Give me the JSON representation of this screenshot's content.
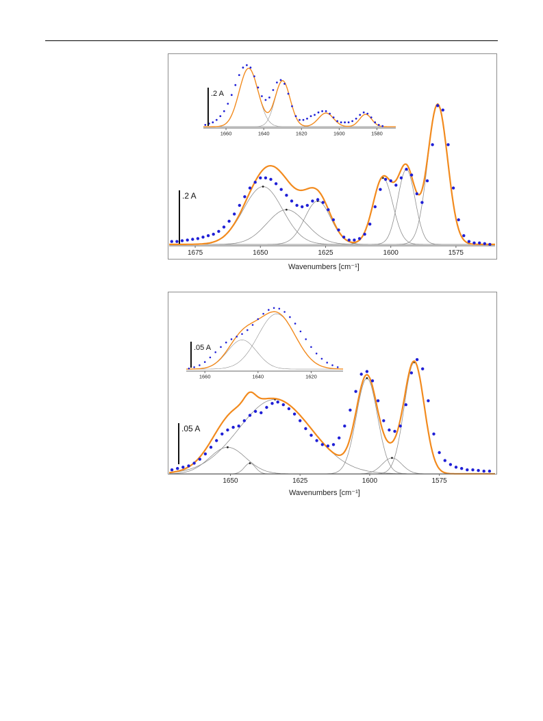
{
  "chart_data": [
    {
      "type": "line",
      "panel": "top",
      "xlabel": "Wavenumbers [cm⁻¹]",
      "xlim": [
        1685,
        1560
      ],
      "x_reversed": true,
      "xticks": [
        1675,
        1650,
        1625,
        1600,
        1575
      ],
      "ylim": [
        0,
        1.0
      ],
      "scale_bar_label": ".2 A",
      "scale_bar_value": 0.2,
      "colors": {
        "fit": "#f28a1d",
        "data": "#1f1fd6",
        "components": "#8c8c8c",
        "frame": "#8c8c8c"
      },
      "components": [
        {
          "center": 1649,
          "height": 0.4,
          "width": 7.5
        },
        {
          "center": 1640,
          "height": 0.24,
          "width": 7.5
        },
        {
          "center": 1628,
          "height": 0.3,
          "width": 5.0
        },
        {
          "center": 1603,
          "height": 0.46,
          "width": 3.8
        },
        {
          "center": 1594,
          "height": 0.52,
          "width": 3.3
        },
        {
          "center": 1582,
          "height": 0.97,
          "width": 3.8
        }
      ],
      "baseline": 0.01,
      "data_points": [
        [
          1684,
          0.03
        ],
        [
          1682,
          0.03
        ],
        [
          1680,
          0.035
        ],
        [
          1678,
          0.04
        ],
        [
          1676,
          0.045
        ],
        [
          1674,
          0.05
        ],
        [
          1672,
          0.06
        ],
        [
          1670,
          0.07
        ],
        [
          1668,
          0.08
        ],
        [
          1666,
          0.1
        ],
        [
          1664,
          0.13
        ],
        [
          1662,
          0.17
        ],
        [
          1660,
          0.22
        ],
        [
          1658,
          0.28
        ],
        [
          1656,
          0.34
        ],
        [
          1654,
          0.4
        ],
        [
          1652,
          0.44
        ],
        [
          1650,
          0.47
        ],
        [
          1648,
          0.47
        ],
        [
          1646,
          0.46
        ],
        [
          1644,
          0.43
        ],
        [
          1642,
          0.39
        ],
        [
          1640,
          0.35
        ],
        [
          1638,
          0.31
        ],
        [
          1636,
          0.28
        ],
        [
          1634,
          0.27
        ],
        [
          1632,
          0.28
        ],
        [
          1630,
          0.31
        ],
        [
          1628,
          0.32
        ],
        [
          1626,
          0.3
        ],
        [
          1624,
          0.25
        ],
        [
          1622,
          0.18
        ],
        [
          1620,
          0.11
        ],
        [
          1618,
          0.06
        ],
        [
          1616,
          0.04
        ],
        [
          1614,
          0.04
        ],
        [
          1612,
          0.05
        ],
        [
          1610,
          0.08
        ],
        [
          1608,
          0.15
        ],
        [
          1606,
          0.27
        ],
        [
          1604,
          0.39
        ],
        [
          1602,
          0.46
        ],
        [
          1600,
          0.45
        ],
        [
          1598,
          0.42
        ],
        [
          1596,
          0.47
        ],
        [
          1594,
          0.53
        ],
        [
          1592,
          0.49
        ],
        [
          1590,
          0.36
        ],
        [
          1588,
          0.3
        ],
        [
          1586,
          0.45
        ],
        [
          1584,
          0.7
        ],
        [
          1582,
          0.97
        ],
        [
          1580,
          0.94
        ],
        [
          1578,
          0.7
        ],
        [
          1576,
          0.4
        ],
        [
          1574,
          0.18
        ],
        [
          1572,
          0.07
        ],
        [
          1570,
          0.03
        ],
        [
          1568,
          0.02
        ],
        [
          1566,
          0.02
        ],
        [
          1564,
          0.015
        ],
        [
          1562,
          0.01
        ]
      ],
      "inset": {
        "scale_bar_label": ".2 A",
        "xlim": [
          1672,
          1570
        ],
        "xticks": [
          1660,
          1640,
          1620,
          1600,
          1580
        ],
        "ylim": [
          0,
          0.55
        ],
        "baseline": 0.005,
        "components": [
          {
            "center": 1648,
            "height": 0.47,
            "width": 5.0
          },
          {
            "center": 1630,
            "height": 0.37,
            "width": 4.0
          },
          {
            "center": 1607,
            "height": 0.11,
            "width": 4.0
          },
          {
            "center": 1586,
            "height": 0.1,
            "width": 3.2
          }
        ],
        "data_points": [
          [
            1671,
            0.02
          ],
          [
            1669,
            0.03
          ],
          [
            1667,
            0.04
          ],
          [
            1665,
            0.06
          ],
          [
            1663,
            0.09
          ],
          [
            1661,
            0.13
          ],
          [
            1659,
            0.19
          ],
          [
            1657,
            0.26
          ],
          [
            1655,
            0.34
          ],
          [
            1653,
            0.42
          ],
          [
            1651,
            0.48
          ],
          [
            1649,
            0.5
          ],
          [
            1647,
            0.48
          ],
          [
            1645,
            0.41
          ],
          [
            1643,
            0.32
          ],
          [
            1641,
            0.25
          ],
          [
            1639,
            0.22
          ],
          [
            1637,
            0.24
          ],
          [
            1635,
            0.3
          ],
          [
            1633,
            0.36
          ],
          [
            1631,
            0.38
          ],
          [
            1629,
            0.35
          ],
          [
            1627,
            0.27
          ],
          [
            1625,
            0.17
          ],
          [
            1623,
            0.09
          ],
          [
            1621,
            0.06
          ],
          [
            1619,
            0.06
          ],
          [
            1617,
            0.07
          ],
          [
            1615,
            0.09
          ],
          [
            1613,
            0.1
          ],
          [
            1611,
            0.12
          ],
          [
            1609,
            0.13
          ],
          [
            1607,
            0.13
          ],
          [
            1605,
            0.11
          ],
          [
            1603,
            0.08
          ],
          [
            1601,
            0.05
          ],
          [
            1599,
            0.04
          ],
          [
            1597,
            0.04
          ],
          [
            1595,
            0.04
          ],
          [
            1593,
            0.05
          ],
          [
            1591,
            0.07
          ],
          [
            1589,
            0.1
          ],
          [
            1587,
            0.12
          ],
          [
            1585,
            0.11
          ],
          [
            1583,
            0.08
          ],
          [
            1581,
            0.04
          ],
          [
            1579,
            0.02
          ],
          [
            1577,
            0.01
          ]
        ]
      }
    },
    {
      "type": "line",
      "panel": "bottom",
      "xlabel": "Wavenumbers [cm⁻¹]",
      "xlim": [
        1672,
        1555
      ],
      "x_reversed": true,
      "xticks": [
        1650,
        1625,
        1600,
        1575
      ],
      "ylim": [
        0,
        1.0
      ],
      "scale_bar_label": ".05 A",
      "scale_bar_value": 0.05,
      "colors": {
        "fit": "#f28a1d",
        "data": "#1f1fd6",
        "components": "#8c8c8c",
        "frame": "#8c8c8c"
      },
      "components": [
        {
          "center": 1651,
          "height": 0.2,
          "width": 6.5
        },
        {
          "center": 1643,
          "height": 0.08,
          "width": 2.0
        },
        {
          "center": 1634,
          "height": 0.56,
          "width": 13.0
        },
        {
          "center": 1601,
          "height": 0.72,
          "width": 3.8
        },
        {
          "center": 1592,
          "height": 0.12,
          "width": 3.5
        },
        {
          "center": 1584,
          "height": 0.84,
          "width": 3.6
        }
      ],
      "baseline": 0.0,
      "data_points": [
        [
          1671,
          0.03
        ],
        [
          1669,
          0.04
        ],
        [
          1667,
          0.05
        ],
        [
          1665,
          0.06
        ],
        [
          1663,
          0.08
        ],
        [
          1661,
          0.11
        ],
        [
          1659,
          0.15
        ],
        [
          1657,
          0.2
        ],
        [
          1655,
          0.25
        ],
        [
          1653,
          0.3
        ],
        [
          1651,
          0.33
        ],
        [
          1649,
          0.35
        ],
        [
          1647,
          0.36
        ],
        [
          1645,
          0.4
        ],
        [
          1643,
          0.44
        ],
        [
          1641,
          0.47
        ],
        [
          1639,
          0.46
        ],
        [
          1637,
          0.5
        ],
        [
          1635,
          0.53
        ],
        [
          1633,
          0.54
        ],
        [
          1631,
          0.52
        ],
        [
          1629,
          0.49
        ],
        [
          1627,
          0.45
        ],
        [
          1625,
          0.4
        ],
        [
          1623,
          0.34
        ],
        [
          1621,
          0.29
        ],
        [
          1619,
          0.25
        ],
        [
          1617,
          0.22
        ],
        [
          1615,
          0.21
        ],
        [
          1613,
          0.22
        ],
        [
          1611,
          0.27
        ],
        [
          1609,
          0.36
        ],
        [
          1607,
          0.48
        ],
        [
          1605,
          0.62
        ],
        [
          1603,
          0.75
        ],
        [
          1601,
          0.77
        ],
        [
          1599,
          0.7
        ],
        [
          1597,
          0.55
        ],
        [
          1595,
          0.4
        ],
        [
          1593,
          0.33
        ],
        [
          1591,
          0.32
        ],
        [
          1589,
          0.36
        ],
        [
          1587,
          0.52
        ],
        [
          1585,
          0.76
        ],
        [
          1583,
          0.86
        ],
        [
          1581,
          0.79
        ],
        [
          1579,
          0.55
        ],
        [
          1577,
          0.3
        ],
        [
          1575,
          0.16
        ],
        [
          1573,
          0.1
        ],
        [
          1571,
          0.07
        ],
        [
          1569,
          0.05
        ],
        [
          1567,
          0.04
        ],
        [
          1565,
          0.03
        ],
        [
          1563,
          0.03
        ],
        [
          1561,
          0.025
        ],
        [
          1559,
          0.02
        ],
        [
          1557,
          0.02
        ]
      ],
      "inset": {
        "scale_bar_label": ".05 A",
        "xlim": [
          1667,
          1608
        ],
        "xticks": [
          1660,
          1640,
          1620
        ],
        "ylim": [
          0,
          1.0
        ],
        "baseline": 0.02,
        "components": [
          {
            "center": 1646,
            "height": 0.45,
            "width": 5.5
          },
          {
            "center": 1633,
            "height": 0.85,
            "width": 7.0
          }
        ],
        "data_points": [
          [
            1666,
            0.03
          ],
          [
            1664,
            0.05
          ],
          [
            1662,
            0.08
          ],
          [
            1660,
            0.13
          ],
          [
            1658,
            0.2
          ],
          [
            1656,
            0.28
          ],
          [
            1654,
            0.36
          ],
          [
            1652,
            0.43
          ],
          [
            1650,
            0.48
          ],
          [
            1648,
            0.52
          ],
          [
            1646,
            0.56
          ],
          [
            1644,
            0.62
          ],
          [
            1642,
            0.7
          ],
          [
            1640,
            0.79
          ],
          [
            1638,
            0.87
          ],
          [
            1636,
            0.93
          ],
          [
            1634,
            0.96
          ],
          [
            1632,
            0.95
          ],
          [
            1630,
            0.9
          ],
          [
            1628,
            0.82
          ],
          [
            1626,
            0.72
          ],
          [
            1624,
            0.6
          ],
          [
            1622,
            0.48
          ],
          [
            1620,
            0.36
          ],
          [
            1618,
            0.26
          ],
          [
            1616,
            0.18
          ],
          [
            1614,
            0.12
          ],
          [
            1612,
            0.08
          ],
          [
            1610,
            0.05
          ]
        ]
      }
    }
  ]
}
